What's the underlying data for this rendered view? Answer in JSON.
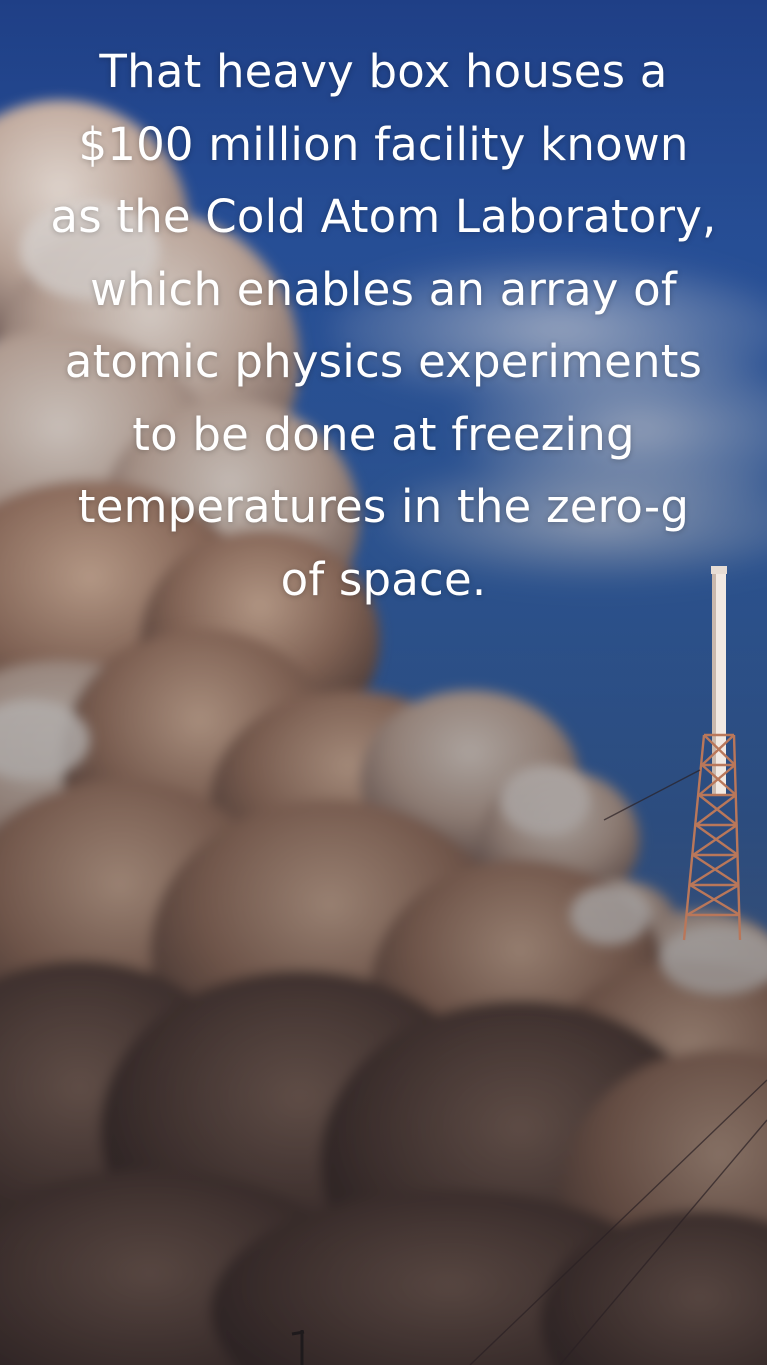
{
  "caption": {
    "text": "That heavy box houses a $100 million facility known as the Cold Atom Laboratory, which enables an array of atomic physics experiments to be done at freezing temperatures in the zero-g of space."
  },
  "scene": {
    "sky_color": "#2a56a5",
    "cloud_highlight_color": "#e7d9cf",
    "cloud_shadow_color": "#5e4b46",
    "tower_color": "#b9775a"
  }
}
